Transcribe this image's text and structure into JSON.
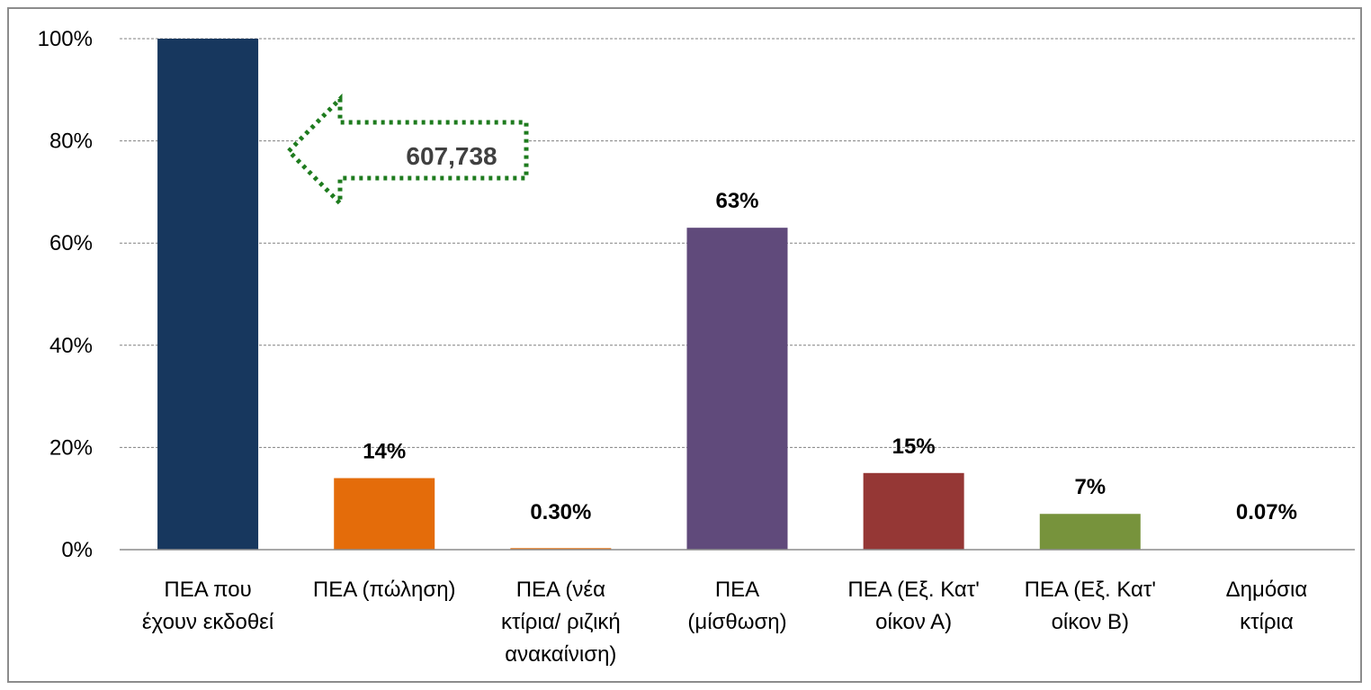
{
  "chart_data": {
    "type": "bar",
    "categories": [
      [
        "ΠΕΑ που",
        "έχουν εκδοθεί"
      ],
      [
        "ΠΕΑ (πώληση)"
      ],
      [
        "ΠΕΑ (νέα",
        "κτίρια/ ριζική",
        "ανακαίνιση)"
      ],
      [
        "ΠΕΑ",
        "(μίσθωση)"
      ],
      [
        "ΠΕΑ (Εξ. Κατ'",
        "οίκον Α)"
      ],
      [
        "ΠΕΑ (Εξ. Κατ'",
        "οίκον Β)"
      ],
      [
        "Δημόσια",
        "κτίρια"
      ]
    ],
    "values": [
      100,
      14,
      0.3,
      63,
      15,
      7,
      0.07
    ],
    "data_labels": [
      "",
      "14%",
      "0.30%",
      "63%",
      "15%",
      "7%",
      "0.07%"
    ],
    "colors": [
      "#17375e",
      "#e46c0a",
      "#e46c0a",
      "#604a7b",
      "#953735",
      "#77933c",
      "#4f81bd"
    ],
    "ylim": [
      0,
      100
    ],
    "yticks": [
      "0%",
      "20%",
      "40%",
      "60%",
      "80%",
      "100%"
    ],
    "ytick_values": [
      0,
      20,
      40,
      60,
      80,
      100
    ],
    "grid": true,
    "grid_style": "dashed",
    "annotation": {
      "text": "607,738",
      "shape": "left-arrow",
      "border_color": "#1e7b1e",
      "border_style": "dotted"
    }
  }
}
